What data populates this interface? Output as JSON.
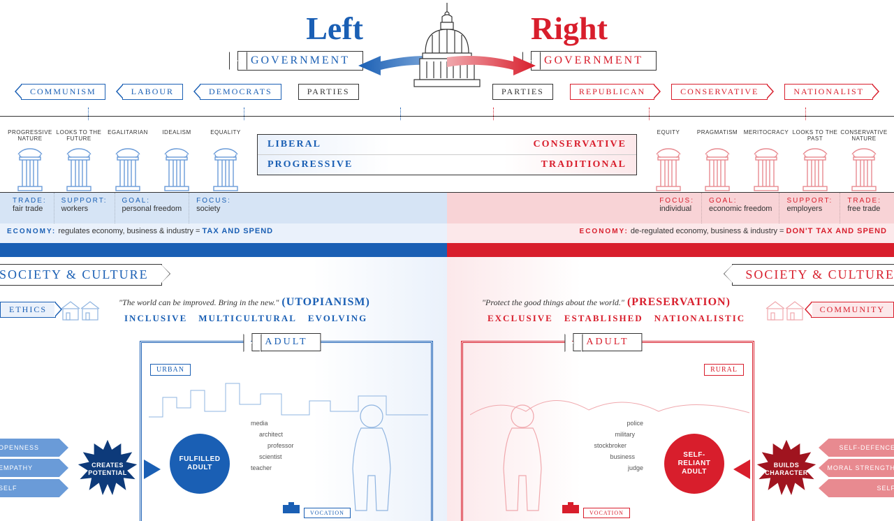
{
  "colors": {
    "blue": "#1a5fb4",
    "blue_dark": "#0d3a7a",
    "blue_light": "#d6e4f5",
    "blue_pale": "#eaf1fb",
    "red": "#d81e2c",
    "red_dark": "#a0141f",
    "red_light": "#f8d3d6",
    "red_pale": "#fce8ea",
    "text": "#333333"
  },
  "header": {
    "left_title": "Left",
    "right_title": "Right",
    "gov_label": "GOVERNMENT"
  },
  "parties": {
    "label": "PARTIES",
    "left": [
      "COMMUNISM",
      "LABOUR",
      "DEMOCRATS"
    ],
    "right": [
      "REPUBLICAN",
      "CONSERVATIVE",
      "NATIONALIST"
    ]
  },
  "pillars": {
    "left": [
      "PROGRESSIVE NATURE",
      "LOOKS TO THE FUTURE",
      "EGALITARIAN",
      "IDEALISM",
      "EQUALITY"
    ],
    "right": [
      "EQUITY",
      "PRAGMATISM",
      "MERITOCRACY",
      "LOOKS TO THE PAST",
      "CONSERVATIVE NATURE"
    ]
  },
  "ideology": {
    "left_top": "LIBERAL",
    "right_top": "CONSERVATIVE",
    "left_bottom": "PROGRESSIVE",
    "right_bottom": "TRADITIONAL"
  },
  "kv": {
    "left": [
      {
        "k": "TRADE:",
        "v": "fair trade"
      },
      {
        "k": "SUPPORT:",
        "v": "workers"
      },
      {
        "k": "GOAL:",
        "v": "personal freedom"
      },
      {
        "k": "FOCUS:",
        "v": "society"
      }
    ],
    "right": [
      {
        "k": "FOCUS:",
        "v": "individual"
      },
      {
        "k": "GOAL:",
        "v": "economic freedom"
      },
      {
        "k": "SUPPORT:",
        "v": "employers"
      },
      {
        "k": "TRADE:",
        "v": "free trade"
      }
    ]
  },
  "economy": {
    "label": "ECONOMY:",
    "left_text": "regulates economy, business & industry =",
    "left_tag": "TAX AND SPEND",
    "right_text": "de-regulated economy, business & industry =",
    "right_tag": "DON'T TAX AND SPEND"
  },
  "society": {
    "title": "SOCIETY & CULTURE",
    "left_tag": "ETHICS",
    "right_tag": "COMMUNITY",
    "left_quote": "\"The world can be improved. Bring in the new.\"",
    "left_quote_tag": "(UTOPIANISM)",
    "right_quote": "\"Protect the good things about the world.\"",
    "right_quote_tag": "(PRESERVATION)",
    "left_values": [
      "INCLUSIVE",
      "MULTICULTURAL",
      "EVOLVING"
    ],
    "right_values": [
      "EXCLUSIVE",
      "ESTABLISHED",
      "NATIONALISTIC"
    ]
  },
  "adult": {
    "label": "ADULT",
    "left_env": "URBAN",
    "right_env": "RURAL",
    "left_circle": "FULFILLED ADULT",
    "right_circle": "SELF-RELIANT ADULT",
    "left_star": "CREATES POTENTIAL",
    "right_star": "BUILDS CHARACTER",
    "vocation": "VOCATION",
    "left_jobs": [
      "media",
      "architect",
      "professor",
      "scientist",
      "teacher"
    ],
    "right_jobs": [
      "police",
      "military",
      "stockbroker",
      "business",
      "judge"
    ]
  },
  "traits": {
    "left": [
      "OPENNESS",
      "EMPATHY",
      "SELF"
    ],
    "right": [
      "SELF-DEFENCE",
      "MORAL STRENGTH",
      "SELF"
    ]
  },
  "right_side_tag": "SELF-"
}
